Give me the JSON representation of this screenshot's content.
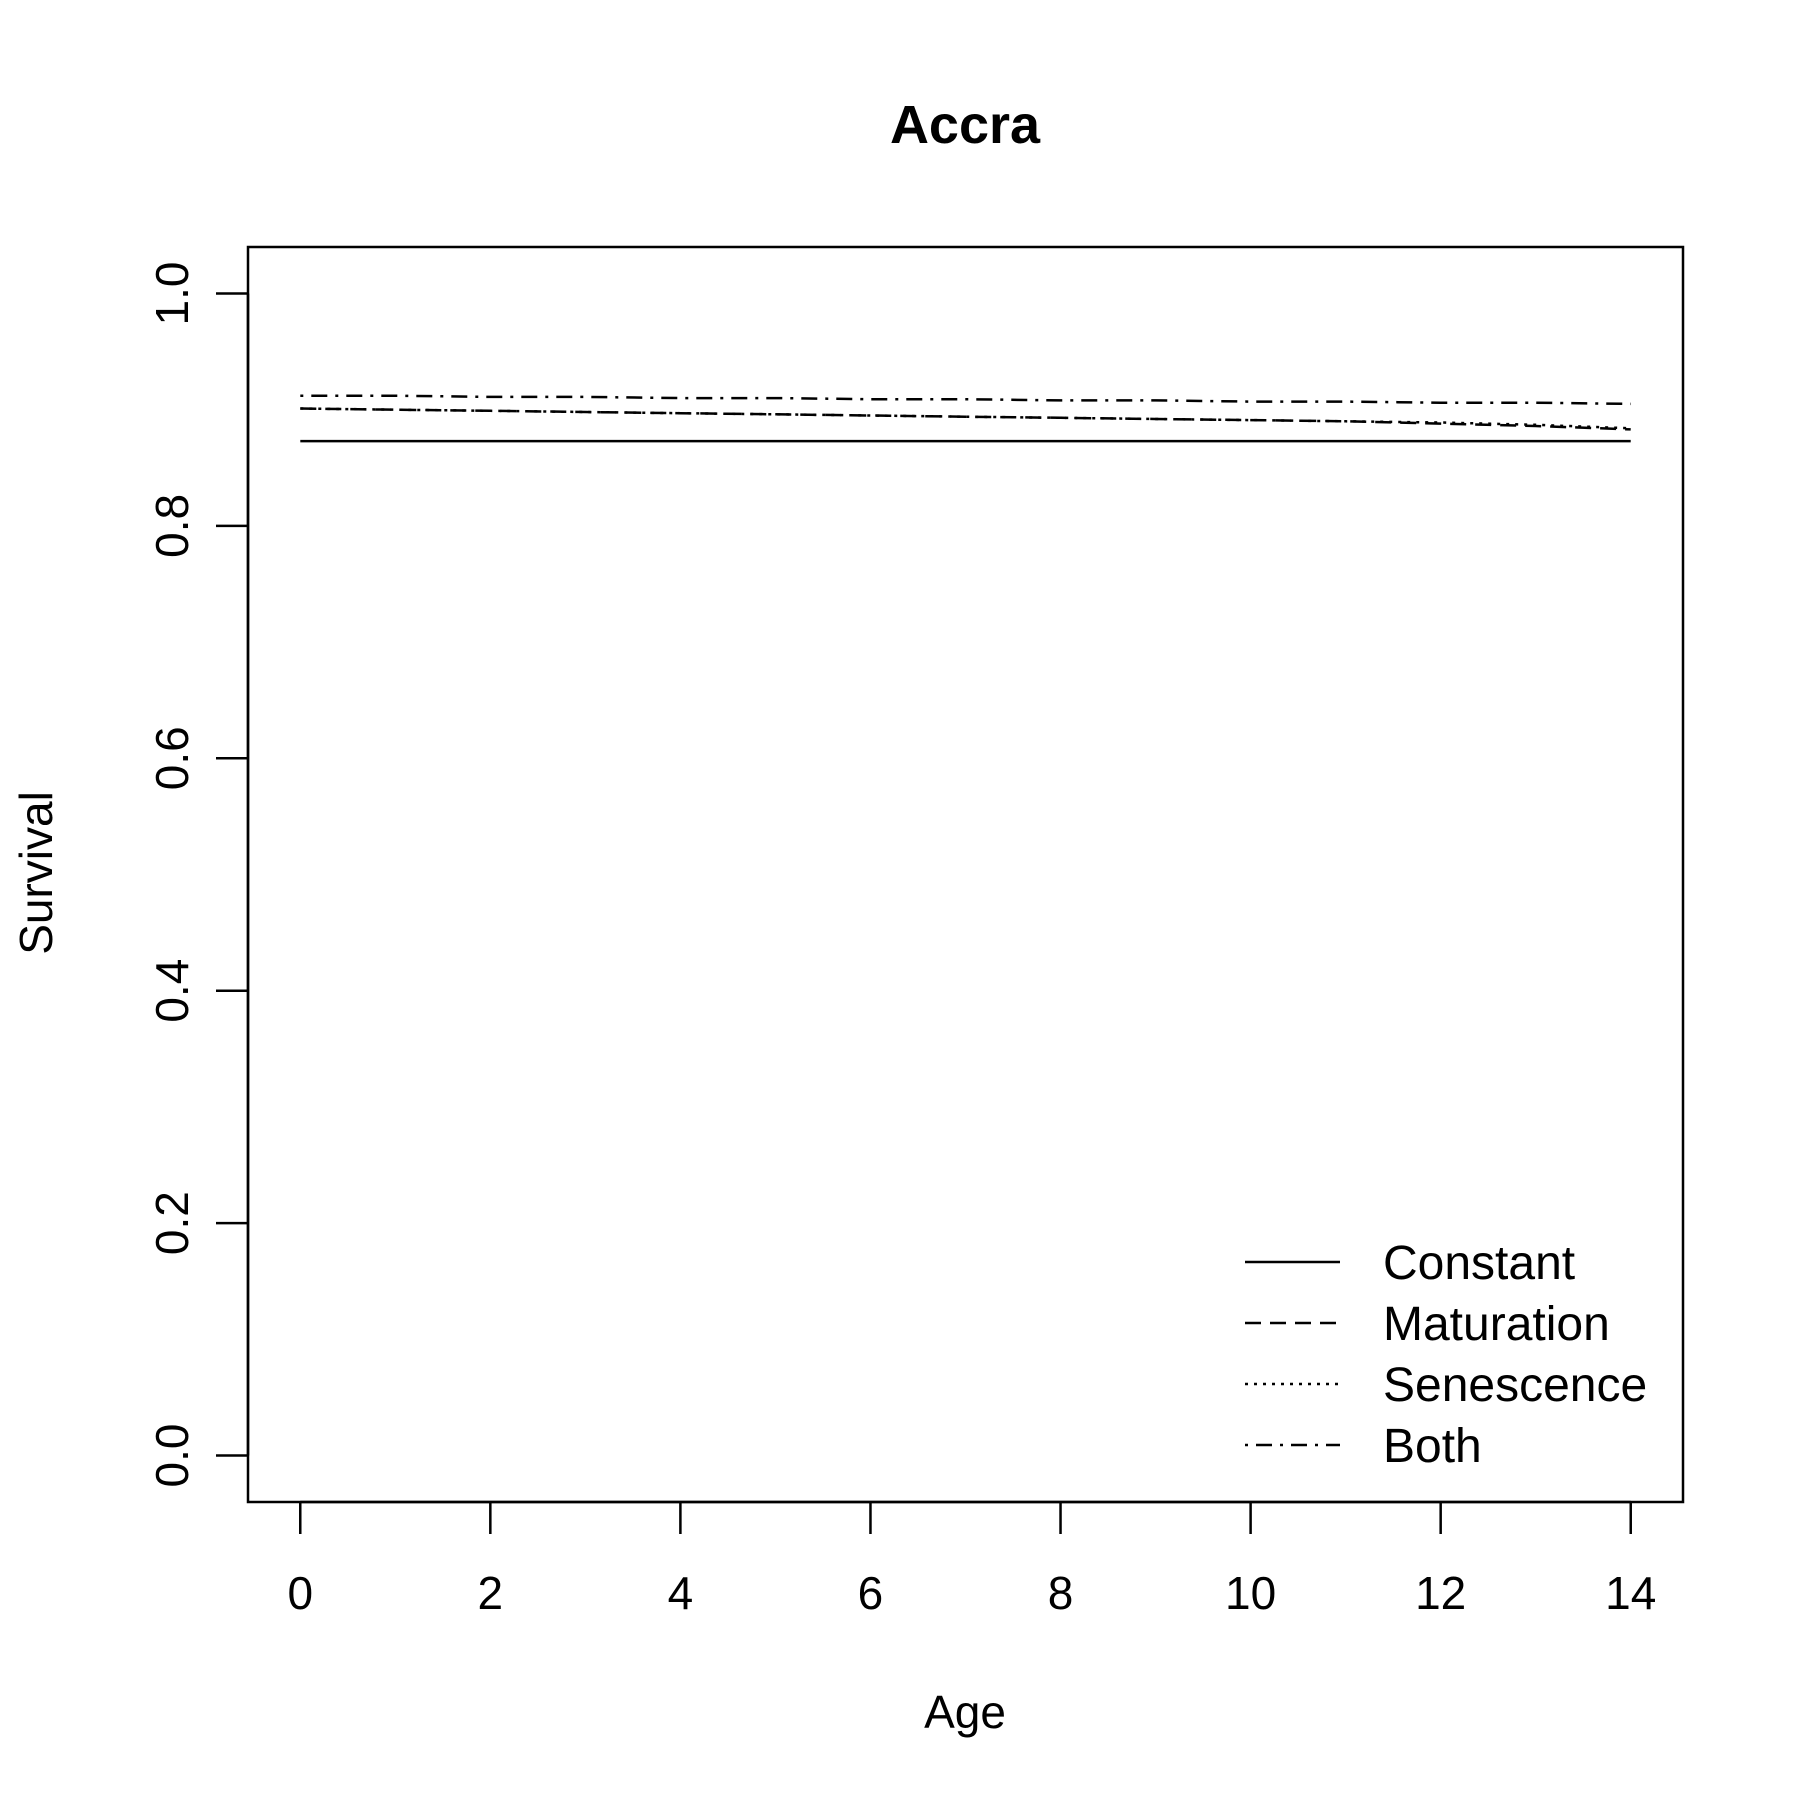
{
  "chart_data": {
    "type": "line",
    "title": "Accra",
    "xlabel": "Age",
    "ylabel": "Survival",
    "xlim": [
      -0.55,
      14.55
    ],
    "ylim": [
      -0.04,
      1.04
    ],
    "xticks": [
      0,
      2,
      4,
      6,
      8,
      10,
      12,
      14
    ],
    "yticks": [
      0.0,
      0.2,
      0.4,
      0.6,
      0.8,
      1.0
    ],
    "xtick_labels": [
      "0",
      "2",
      "4",
      "6",
      "8",
      "10",
      "12",
      "14"
    ],
    "ytick_labels": [
      "0.0",
      "0.2",
      "0.4",
      "0.6",
      "0.8",
      "1.0"
    ],
    "grid": false,
    "legend_position": "bottom-right",
    "x": [
      0,
      1,
      2,
      3,
      4,
      5,
      6,
      7,
      8,
      9,
      10,
      11,
      12,
      13,
      14
    ],
    "series": [
      {
        "name": "Constant",
        "line_style": "solid",
        "values": [
          0.873,
          0.873,
          0.873,
          0.873,
          0.873,
          0.873,
          0.873,
          0.873,
          0.873,
          0.873,
          0.873,
          0.873,
          0.873,
          0.873,
          0.873
        ]
      },
      {
        "name": "Maturation",
        "line_style": "dashed",
        "values": [
          0.901,
          0.9,
          0.899,
          0.898,
          0.897,
          0.896,
          0.895,
          0.894,
          0.893,
          0.892,
          0.891,
          0.89,
          0.888,
          0.886,
          0.883
        ]
      },
      {
        "name": "Senescence",
        "line_style": "dotted",
        "values": [
          0.901,
          0.9,
          0.899,
          0.898,
          0.897,
          0.896,
          0.895,
          0.894,
          0.893,
          0.892,
          0.891,
          0.89,
          0.889,
          0.887,
          0.884
        ]
      },
      {
        "name": "Both",
        "line_style": "dotdash",
        "values": [
          0.912,
          0.912,
          0.911,
          0.911,
          0.91,
          0.91,
          0.909,
          0.909,
          0.908,
          0.908,
          0.907,
          0.907,
          0.906,
          0.906,
          0.905
        ]
      }
    ]
  }
}
